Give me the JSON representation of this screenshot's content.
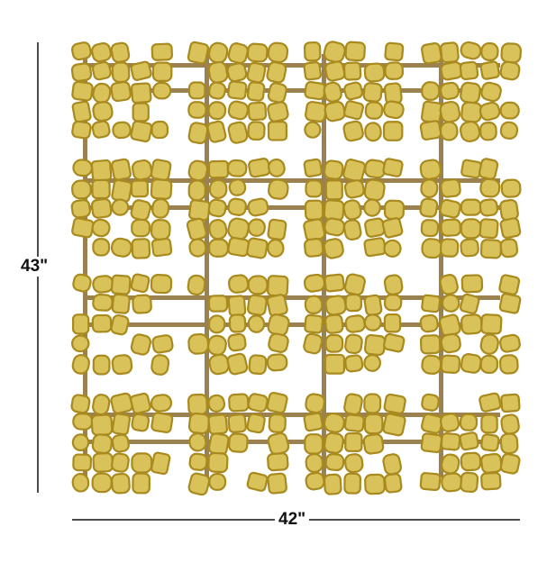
{
  "product": {
    "height_label": "43\"",
    "width_label": "42\"",
    "grid": {
      "rows": 4,
      "cols": 4
    },
    "colors": {
      "gold": "#d9c25a",
      "gold_edge": "#a88a1e",
      "frame": "#9c8150"
    }
  }
}
